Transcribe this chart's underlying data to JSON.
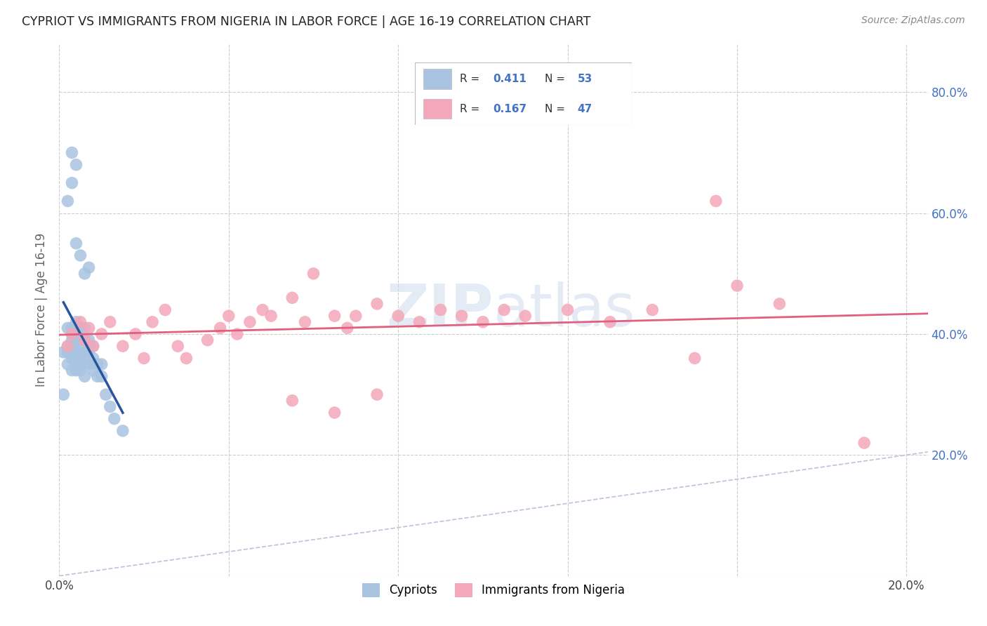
{
  "title": "CYPRIOT VS IMMIGRANTS FROM NIGERIA IN LABOR FORCE | AGE 16-19 CORRELATION CHART",
  "source": "Source: ZipAtlas.com",
  "ylabel": "In Labor Force | Age 16-19",
  "xlim": [
    0.0,
    0.205
  ],
  "ylim": [
    0.0,
    0.88
  ],
  "xticks": [
    0.0,
    0.04,
    0.08,
    0.12,
    0.16,
    0.2
  ],
  "xtick_labels": [
    "0.0%",
    "",
    "",
    "",
    "",
    "20.0%"
  ],
  "yticks_right": [
    0.2,
    0.4,
    0.6,
    0.8
  ],
  "ytick_labels_right": [
    "20.0%",
    "40.0%",
    "60.0%",
    "80.0%"
  ],
  "R_cypriot": 0.411,
  "N_cypriot": 53,
  "R_nigeria": 0.167,
  "N_nigeria": 47,
  "cypriot_color": "#a8c4e0",
  "nigeria_color": "#f4a7b9",
  "cypriot_line_color": "#2955a0",
  "nigeria_line_color": "#e06080",
  "diagonal_color": "#b8c4d8",
  "watermark": "ZIPatlas",
  "cypriot_x": [
    0.001,
    0.001,
    0.002,
    0.002,
    0.002,
    0.002,
    0.003,
    0.003,
    0.003,
    0.003,
    0.003,
    0.003,
    0.003,
    0.004,
    0.004,
    0.004,
    0.004,
    0.004,
    0.004,
    0.005,
    0.005,
    0.005,
    0.005,
    0.005,
    0.005,
    0.006,
    0.006,
    0.006,
    0.006,
    0.006,
    0.007,
    0.007,
    0.007,
    0.007,
    0.008,
    0.008,
    0.008,
    0.009,
    0.009,
    0.01,
    0.01,
    0.011,
    0.012,
    0.013,
    0.015,
    0.002,
    0.003,
    0.004,
    0.005,
    0.006,
    0.007,
    0.003,
    0.004
  ],
  "cypriot_y": [
    0.37,
    0.3,
    0.37,
    0.38,
    0.41,
    0.35,
    0.36,
    0.38,
    0.4,
    0.41,
    0.34,
    0.36,
    0.39,
    0.35,
    0.38,
    0.4,
    0.42,
    0.34,
    0.36,
    0.35,
    0.37,
    0.39,
    0.41,
    0.34,
    0.36,
    0.35,
    0.37,
    0.39,
    0.41,
    0.33,
    0.35,
    0.37,
    0.39,
    0.38,
    0.34,
    0.36,
    0.38,
    0.33,
    0.35,
    0.33,
    0.35,
    0.3,
    0.28,
    0.26,
    0.24,
    0.62,
    0.65,
    0.55,
    0.53,
    0.5,
    0.51,
    0.7,
    0.68
  ],
  "nigeria_x": [
    0.002,
    0.003,
    0.005,
    0.006,
    0.007,
    0.008,
    0.01,
    0.012,
    0.015,
    0.018,
    0.02,
    0.022,
    0.025,
    0.028,
    0.03,
    0.035,
    0.038,
    0.04,
    0.042,
    0.045,
    0.048,
    0.05,
    0.055,
    0.058,
    0.06,
    0.065,
    0.068,
    0.07,
    0.075,
    0.08,
    0.085,
    0.09,
    0.095,
    0.1,
    0.105,
    0.11,
    0.12,
    0.13,
    0.14,
    0.15,
    0.155,
    0.16,
    0.17,
    0.19,
    0.055,
    0.065,
    0.075
  ],
  "nigeria_y": [
    0.38,
    0.4,
    0.42,
    0.39,
    0.41,
    0.38,
    0.4,
    0.42,
    0.38,
    0.4,
    0.36,
    0.42,
    0.44,
    0.38,
    0.36,
    0.39,
    0.41,
    0.43,
    0.4,
    0.42,
    0.44,
    0.43,
    0.46,
    0.42,
    0.5,
    0.43,
    0.41,
    0.43,
    0.45,
    0.43,
    0.42,
    0.44,
    0.43,
    0.42,
    0.44,
    0.43,
    0.44,
    0.42,
    0.44,
    0.36,
    0.62,
    0.48,
    0.45,
    0.22,
    0.29,
    0.27,
    0.3
  ]
}
